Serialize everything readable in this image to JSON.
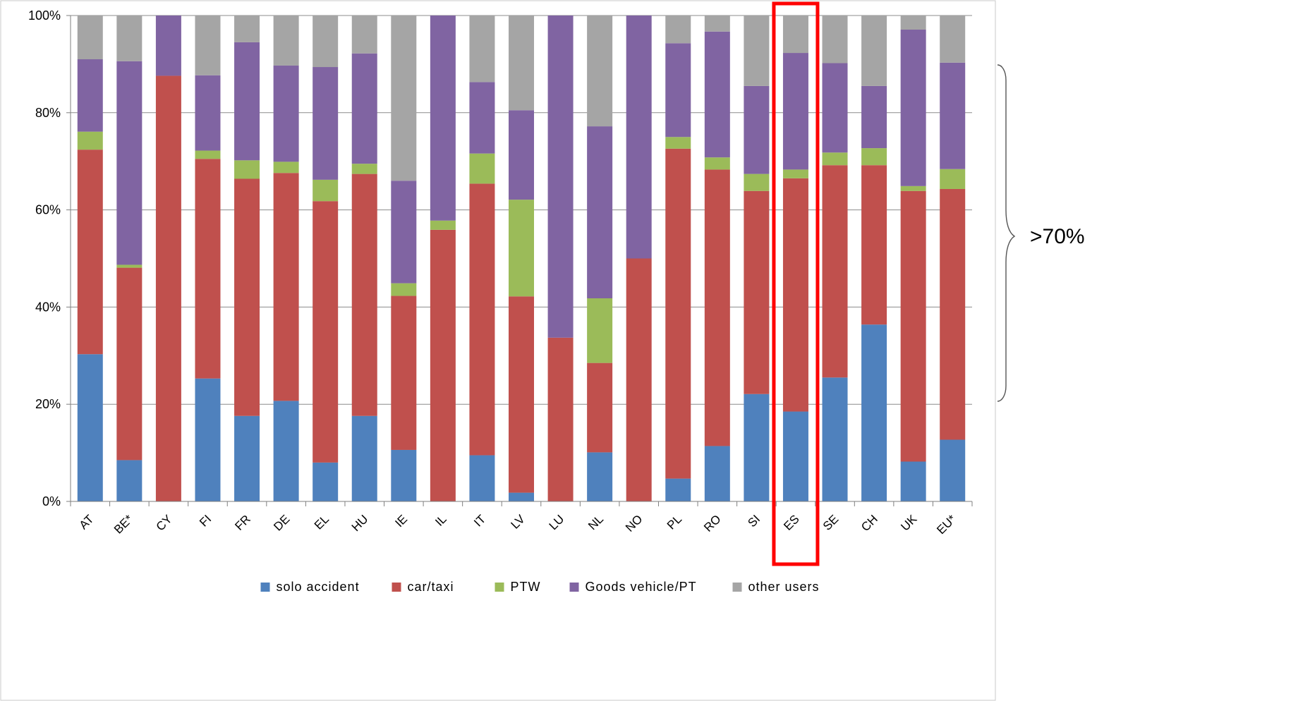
{
  "chart_data": {
    "type": "bar",
    "stacked": true,
    "categories": [
      "AT",
      "BE*",
      "CY",
      "FI",
      "FR",
      "DE",
      "EL",
      "HU",
      "IE",
      "IL",
      "IT",
      "LV",
      "LU",
      "NL",
      "NO",
      "PL",
      "RO",
      "SI",
      "ES",
      "SE",
      "CH",
      "UK",
      "EU*"
    ],
    "series": [
      {
        "name": "solo accident",
        "color": "#4f81bd",
        "values": [
          30.3,
          8.5,
          0.0,
          25.3,
          17.6,
          20.7,
          8.0,
          17.6,
          10.6,
          0.0,
          9.5,
          1.8,
          0.0,
          10.1,
          0.0,
          4.7,
          11.4,
          22.1,
          18.5,
          25.5,
          36.4,
          8.2,
          12.7
        ]
      },
      {
        "name": "car/taxi",
        "color": "#c0504d",
        "values": [
          42.1,
          39.6,
          87.6,
          45.2,
          48.8,
          46.9,
          53.8,
          49.8,
          31.7,
          55.9,
          55.9,
          40.4,
          33.7,
          18.4,
          50.0,
          67.9,
          56.9,
          41.8,
          48.0,
          43.7,
          32.8,
          55.7,
          51.6
        ]
      },
      {
        "name": "PTW",
        "color": "#9bbb59",
        "values": [
          3.7,
          0.6,
          0.0,
          1.7,
          3.8,
          2.3,
          4.4,
          2.1,
          2.6,
          1.9,
          6.2,
          19.9,
          0.0,
          13.3,
          0.0,
          2.4,
          2.5,
          3.5,
          1.8,
          2.6,
          3.5,
          1.0,
          4.1
        ]
      },
      {
        "name": "Goods vehicle/PT",
        "color": "#8064a2",
        "values": [
          14.9,
          41.9,
          12.4,
          15.5,
          24.3,
          19.8,
          23.2,
          22.7,
          21.1,
          42.2,
          14.7,
          18.4,
          66.3,
          35.4,
          50.0,
          19.3,
          25.9,
          18.1,
          24.0,
          18.4,
          12.8,
          32.2,
          21.9
        ]
      },
      {
        "name": "other users",
        "color": "#a5a5a5",
        "values": [
          9.0,
          9.4,
          0.0,
          12.3,
          5.5,
          10.3,
          10.6,
          7.8,
          34.0,
          0.0,
          13.7,
          19.5,
          0.0,
          22.8,
          0.0,
          5.7,
          3.3,
          14.5,
          7.7,
          9.8,
          14.5,
          2.9,
          9.7
        ]
      }
    ],
    "y_ticks": [
      "0%",
      "20%",
      "40%",
      "60%",
      "80%",
      "100%"
    ],
    "ylim": [
      0,
      100
    ],
    "grid": "horizontal",
    "legend_position": "bottom",
    "highlight_category": "ES",
    "highlight_color": "#ff0000",
    "annotation": {
      "label": ">70%",
      "range": [
        20,
        90
      ]
    }
  }
}
